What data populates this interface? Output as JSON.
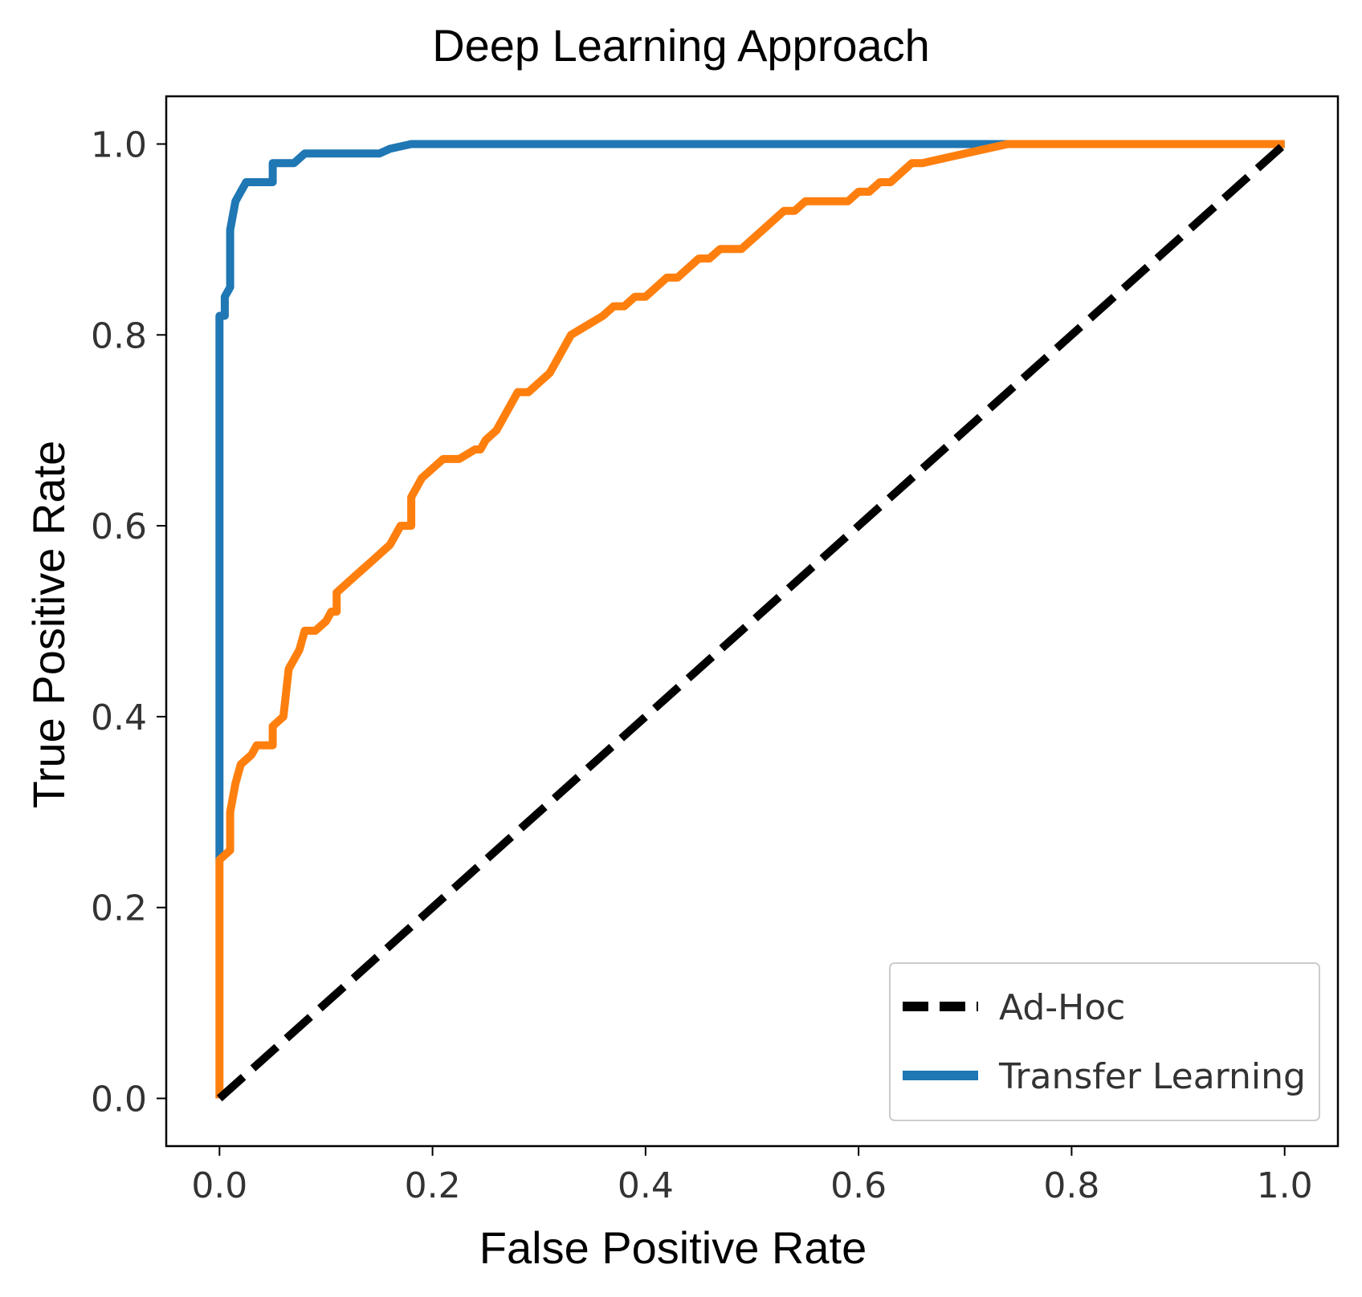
{
  "chart_data": {
    "type": "line",
    "title": "Deep Learning Approach",
    "xlabel": "False Positive Rate",
    "ylabel": "True Positive Rate",
    "xlim": [
      -0.05,
      1.05
    ],
    "ylim": [
      -0.05,
      1.05
    ],
    "xticks": [
      "0.0",
      "0.2",
      "0.4",
      "0.6",
      "0.8",
      "1.0"
    ],
    "yticks": [
      "0.0",
      "0.2",
      "0.4",
      "0.6",
      "0.8",
      "1.0"
    ],
    "grid": false,
    "legend_position": "lower-right",
    "series": [
      {
        "name": "Ad-Hoc",
        "color": "#000000",
        "style": "dashed",
        "x": [
          0,
          1
        ],
        "y": [
          0,
          1
        ]
      },
      {
        "name": "Transfer Learning",
        "color": "#1f77b4",
        "style": "solid",
        "x": [
          0,
          0,
          0.005,
          0.005,
          0.01,
          0.01,
          0.015,
          0.02,
          0.025,
          0.03,
          0.04,
          0.05,
          0.05,
          0.06,
          0.07,
          0.08,
          0.1,
          0.15,
          0.16,
          0.18,
          0.2,
          1.0
        ],
        "y": [
          0.25,
          0.82,
          0.82,
          0.84,
          0.85,
          0.91,
          0.94,
          0.95,
          0.96,
          0.96,
          0.96,
          0.96,
          0.98,
          0.98,
          0.98,
          0.99,
          0.99,
          0.99,
          0.995,
          1.0,
          1.0,
          1.0
        ]
      },
      {
        "name": "",
        "color": "#ff7f0e",
        "style": "solid",
        "x": [
          0,
          0,
          0.01,
          0.01,
          0.015,
          0.02,
          0.03,
          0.035,
          0.045,
          0.05,
          0.05,
          0.06,
          0.06,
          0.065,
          0.075,
          0.08,
          0.09,
          0.1,
          0.105,
          0.11,
          0.11,
          0.13,
          0.14,
          0.15,
          0.16,
          0.165,
          0.17,
          0.175,
          0.18,
          0.18,
          0.19,
          0.2,
          0.21,
          0.22,
          0.225,
          0.24,
          0.245,
          0.25,
          0.26,
          0.27,
          0.28,
          0.29,
          0.3,
          0.31,
          0.32,
          0.33,
          0.33,
          0.345,
          0.36,
          0.37,
          0.38,
          0.39,
          0.4,
          0.41,
          0.42,
          0.43,
          0.44,
          0.45,
          0.46,
          0.47,
          0.48,
          0.49,
          0.5,
          0.51,
          0.52,
          0.53,
          0.54,
          0.55,
          0.56,
          0.57,
          0.58,
          0.59,
          0.6,
          0.61,
          0.62,
          0.63,
          0.64,
          0.65,
          0.66,
          0.68,
          0.7,
          0.72,
          0.74,
          0.76,
          1.0
        ],
        "y": [
          0,
          0.25,
          0.26,
          0.3,
          0.33,
          0.35,
          0.36,
          0.37,
          0.37,
          0.37,
          0.39,
          0.4,
          0.4,
          0.45,
          0.47,
          0.49,
          0.49,
          0.5,
          0.51,
          0.51,
          0.53,
          0.55,
          0.56,
          0.57,
          0.58,
          0.59,
          0.6,
          0.6,
          0.6,
          0.63,
          0.65,
          0.66,
          0.67,
          0.67,
          0.67,
          0.68,
          0.68,
          0.69,
          0.7,
          0.72,
          0.74,
          0.74,
          0.75,
          0.76,
          0.78,
          0.8,
          0.8,
          0.81,
          0.82,
          0.83,
          0.83,
          0.84,
          0.84,
          0.85,
          0.86,
          0.86,
          0.87,
          0.88,
          0.88,
          0.89,
          0.89,
          0.89,
          0.9,
          0.91,
          0.92,
          0.93,
          0.93,
          0.94,
          0.94,
          0.94,
          0.94,
          0.94,
          0.95,
          0.95,
          0.96,
          0.96,
          0.97,
          0.98,
          0.98,
          0.985,
          0.99,
          0.995,
          1.0,
          1.0,
          1.0
        ]
      }
    ]
  }
}
